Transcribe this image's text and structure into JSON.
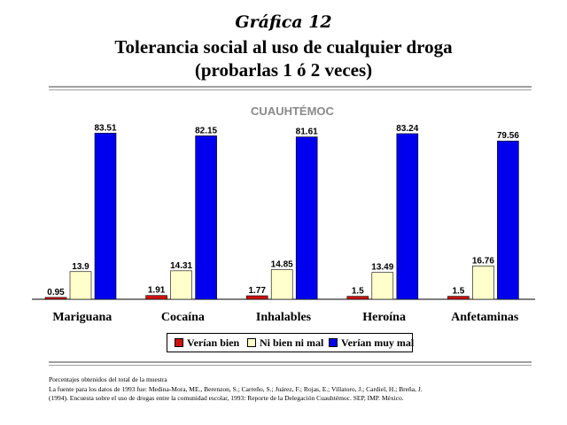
{
  "header": {
    "number": "Gráfica 12",
    "title_line1": "Tolerancia social al uso de cualquier droga",
    "title_line2": "(probarlas 1 ó 2 veces)"
  },
  "chart_data": {
    "type": "bar",
    "title": "CUAUHTÉMOC",
    "categories": [
      "Mariguana",
      "Cocaína",
      "Inhalables",
      "Heroína",
      "Anfetaminas"
    ],
    "series": [
      {
        "name": "Verían bien",
        "color": "#cc1111",
        "values": [
          0.95,
          1.91,
          1.77,
          1.5,
          1.5
        ]
      },
      {
        "name": "Ni bien ni mal",
        "color": "#ffffcc",
        "values": [
          13.9,
          14.31,
          14.85,
          13.49,
          16.76
        ]
      },
      {
        "name": "Verían muy mal",
        "color": "#0000ee",
        "values": [
          83.51,
          82.15,
          81.61,
          83.24,
          79.56
        ]
      }
    ],
    "data_labels": [
      [
        "0.95",
        "13.9",
        "83.51"
      ],
      [
        "1.91",
        "14.31",
        "82.15"
      ],
      [
        "1.77",
        "14.85",
        "81.61"
      ],
      [
        "1.5",
        "13.49",
        "83.24"
      ],
      [
        "1.5",
        "16.76",
        "79.56"
      ]
    ],
    "ylim": [
      0,
      85
    ],
    "legend_position": "bottom",
    "grid": false
  },
  "notes": {
    "line1": "Porcentajes obtenidos del total de la muestra",
    "line2": "La fuente para los datos de 1993 fue: Medina-Mora, ME., Berenzon, S.; Carreño, S.; Juárez, F.; Rojas, E.; Villatoro, J.; Cardiel, H.; Breña, J.",
    "line3": "(1994). Encuesta sobre el uso de drogas entre la comunidad escolar, 1993: Reporte de la Delegación Cuauhtémoc. SEP, IMP. México."
  }
}
